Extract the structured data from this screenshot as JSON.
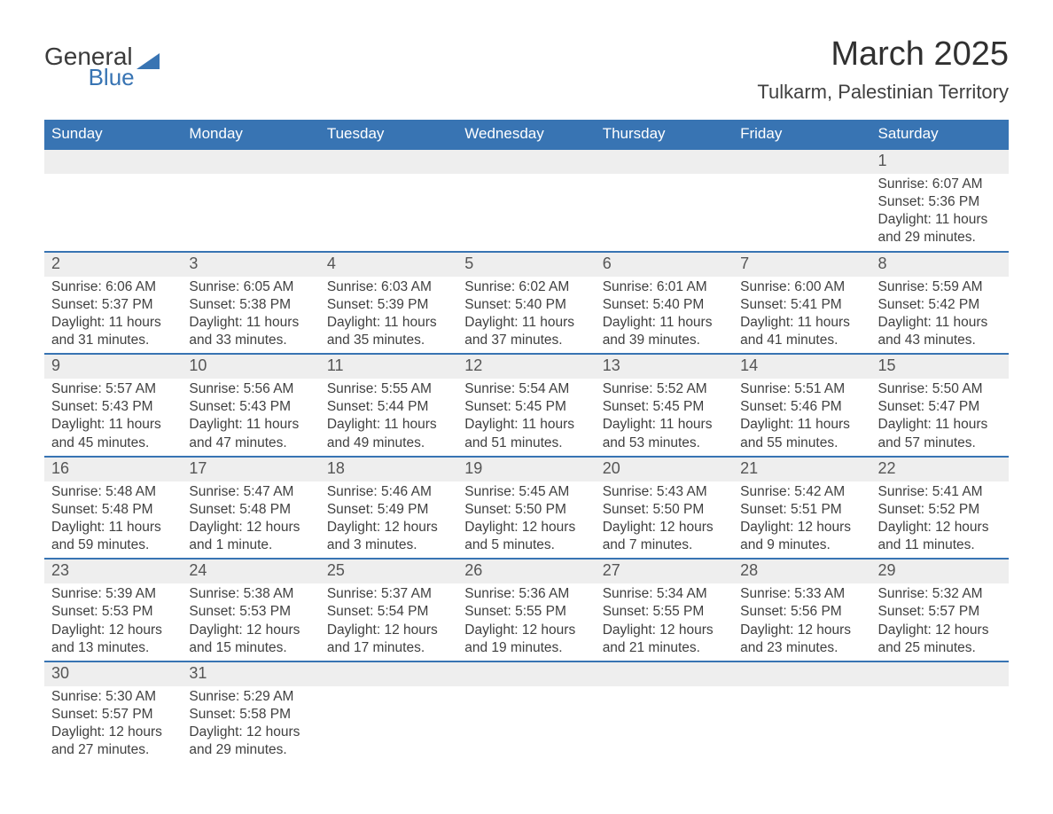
{
  "logo": {
    "text1": "General",
    "text2": "Blue",
    "triangle_color": "#3874b3",
    "text1_color": "#3a3a3a"
  },
  "title": "March 2025",
  "location": "Tulkarm, Palestinian Territory",
  "colors": {
    "header_bg": "#3874b3",
    "header_text": "#ffffff",
    "band_bg": "#eeeeee",
    "row_divider": "#3874b3",
    "body_text": "#404040"
  },
  "fonts": {
    "title_pt": 38,
    "location_pt": 22,
    "dow_pt": 17,
    "daynum_pt": 18,
    "body_pt": 15.5
  },
  "days_of_week": [
    "Sunday",
    "Monday",
    "Tuesday",
    "Wednesday",
    "Thursday",
    "Friday",
    "Saturday"
  ],
  "weeks": [
    [
      null,
      null,
      null,
      null,
      null,
      null,
      {
        "n": "1",
        "sr": "Sunrise: 6:07 AM",
        "ss": "Sunset: 5:36 PM",
        "d1": "Daylight: 11 hours",
        "d2": "and 29 minutes."
      }
    ],
    [
      {
        "n": "2",
        "sr": "Sunrise: 6:06 AM",
        "ss": "Sunset: 5:37 PM",
        "d1": "Daylight: 11 hours",
        "d2": "and 31 minutes."
      },
      {
        "n": "3",
        "sr": "Sunrise: 6:05 AM",
        "ss": "Sunset: 5:38 PM",
        "d1": "Daylight: 11 hours",
        "d2": "and 33 minutes."
      },
      {
        "n": "4",
        "sr": "Sunrise: 6:03 AM",
        "ss": "Sunset: 5:39 PM",
        "d1": "Daylight: 11 hours",
        "d2": "and 35 minutes."
      },
      {
        "n": "5",
        "sr": "Sunrise: 6:02 AM",
        "ss": "Sunset: 5:40 PM",
        "d1": "Daylight: 11 hours",
        "d2": "and 37 minutes."
      },
      {
        "n": "6",
        "sr": "Sunrise: 6:01 AM",
        "ss": "Sunset: 5:40 PM",
        "d1": "Daylight: 11 hours",
        "d2": "and 39 minutes."
      },
      {
        "n": "7",
        "sr": "Sunrise: 6:00 AM",
        "ss": "Sunset: 5:41 PM",
        "d1": "Daylight: 11 hours",
        "d2": "and 41 minutes."
      },
      {
        "n": "8",
        "sr": "Sunrise: 5:59 AM",
        "ss": "Sunset: 5:42 PM",
        "d1": "Daylight: 11 hours",
        "d2": "and 43 minutes."
      }
    ],
    [
      {
        "n": "9",
        "sr": "Sunrise: 5:57 AM",
        "ss": "Sunset: 5:43 PM",
        "d1": "Daylight: 11 hours",
        "d2": "and 45 minutes."
      },
      {
        "n": "10",
        "sr": "Sunrise: 5:56 AM",
        "ss": "Sunset: 5:43 PM",
        "d1": "Daylight: 11 hours",
        "d2": "and 47 minutes."
      },
      {
        "n": "11",
        "sr": "Sunrise: 5:55 AM",
        "ss": "Sunset: 5:44 PM",
        "d1": "Daylight: 11 hours",
        "d2": "and 49 minutes."
      },
      {
        "n": "12",
        "sr": "Sunrise: 5:54 AM",
        "ss": "Sunset: 5:45 PM",
        "d1": "Daylight: 11 hours",
        "d2": "and 51 minutes."
      },
      {
        "n": "13",
        "sr": "Sunrise: 5:52 AM",
        "ss": "Sunset: 5:45 PM",
        "d1": "Daylight: 11 hours",
        "d2": "and 53 minutes."
      },
      {
        "n": "14",
        "sr": "Sunrise: 5:51 AM",
        "ss": "Sunset: 5:46 PM",
        "d1": "Daylight: 11 hours",
        "d2": "and 55 minutes."
      },
      {
        "n": "15",
        "sr": "Sunrise: 5:50 AM",
        "ss": "Sunset: 5:47 PM",
        "d1": "Daylight: 11 hours",
        "d2": "and 57 minutes."
      }
    ],
    [
      {
        "n": "16",
        "sr": "Sunrise: 5:48 AM",
        "ss": "Sunset: 5:48 PM",
        "d1": "Daylight: 11 hours",
        "d2": "and 59 minutes."
      },
      {
        "n": "17",
        "sr": "Sunrise: 5:47 AM",
        "ss": "Sunset: 5:48 PM",
        "d1": "Daylight: 12 hours",
        "d2": "and 1 minute."
      },
      {
        "n": "18",
        "sr": "Sunrise: 5:46 AM",
        "ss": "Sunset: 5:49 PM",
        "d1": "Daylight: 12 hours",
        "d2": "and 3 minutes."
      },
      {
        "n": "19",
        "sr": "Sunrise: 5:45 AM",
        "ss": "Sunset: 5:50 PM",
        "d1": "Daylight: 12 hours",
        "d2": "and 5 minutes."
      },
      {
        "n": "20",
        "sr": "Sunrise: 5:43 AM",
        "ss": "Sunset: 5:50 PM",
        "d1": "Daylight: 12 hours",
        "d2": "and 7 minutes."
      },
      {
        "n": "21",
        "sr": "Sunrise: 5:42 AM",
        "ss": "Sunset: 5:51 PM",
        "d1": "Daylight: 12 hours",
        "d2": "and 9 minutes."
      },
      {
        "n": "22",
        "sr": "Sunrise: 5:41 AM",
        "ss": "Sunset: 5:52 PM",
        "d1": "Daylight: 12 hours",
        "d2": "and 11 minutes."
      }
    ],
    [
      {
        "n": "23",
        "sr": "Sunrise: 5:39 AM",
        "ss": "Sunset: 5:53 PM",
        "d1": "Daylight: 12 hours",
        "d2": "and 13 minutes."
      },
      {
        "n": "24",
        "sr": "Sunrise: 5:38 AM",
        "ss": "Sunset: 5:53 PM",
        "d1": "Daylight: 12 hours",
        "d2": "and 15 minutes."
      },
      {
        "n": "25",
        "sr": "Sunrise: 5:37 AM",
        "ss": "Sunset: 5:54 PM",
        "d1": "Daylight: 12 hours",
        "d2": "and 17 minutes."
      },
      {
        "n": "26",
        "sr": "Sunrise: 5:36 AM",
        "ss": "Sunset: 5:55 PM",
        "d1": "Daylight: 12 hours",
        "d2": "and 19 minutes."
      },
      {
        "n": "27",
        "sr": "Sunrise: 5:34 AM",
        "ss": "Sunset: 5:55 PM",
        "d1": "Daylight: 12 hours",
        "d2": "and 21 minutes."
      },
      {
        "n": "28",
        "sr": "Sunrise: 5:33 AM",
        "ss": "Sunset: 5:56 PM",
        "d1": "Daylight: 12 hours",
        "d2": "and 23 minutes."
      },
      {
        "n": "29",
        "sr": "Sunrise: 5:32 AM",
        "ss": "Sunset: 5:57 PM",
        "d1": "Daylight: 12 hours",
        "d2": "and 25 minutes."
      }
    ],
    [
      {
        "n": "30",
        "sr": "Sunrise: 5:30 AM",
        "ss": "Sunset: 5:57 PM",
        "d1": "Daylight: 12 hours",
        "d2": "and 27 minutes."
      },
      {
        "n": "31",
        "sr": "Sunrise: 5:29 AM",
        "ss": "Sunset: 5:58 PM",
        "d1": "Daylight: 12 hours",
        "d2": "and 29 minutes."
      },
      null,
      null,
      null,
      null,
      null
    ]
  ]
}
